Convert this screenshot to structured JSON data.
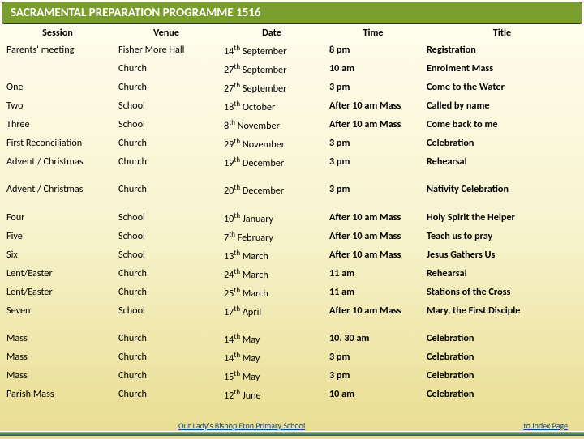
{
  "header": {
    "title": "SACRAMENTAL PREPARATION PROGRAMME 1516"
  },
  "columns": [
    "Session",
    "Venue",
    "Date",
    "Time",
    "Title"
  ],
  "groups": [
    [
      {
        "session": "Parents' meeting",
        "venue": "Fisher More Hall",
        "date_d": "14",
        "date_sup": "th",
        "date_m": " September",
        "time": "8 pm",
        "title": "Registration"
      },
      {
        "session": "",
        "venue": "Church",
        "date_d": "27",
        "date_sup": "th",
        "date_m": " September",
        "time": "10 am",
        "title": "Enrolment Mass"
      },
      {
        "session": "One",
        "venue": "Church",
        "date_d": "27",
        "date_sup": "th",
        "date_m": " September",
        "time": "3 pm",
        "title": "Come to the Water"
      },
      {
        "session": "Two",
        "venue": "School",
        "date_d": "18",
        "date_sup": "th",
        "date_m": " October",
        "time": "After 10 am Mass",
        "title": "Called by name"
      },
      {
        "session": "Three",
        "venue": "School",
        "date_d": "8",
        "date_sup": "th",
        "date_m": " November",
        "time": "After 10 am Mass",
        "title": "Come back to me"
      },
      {
        "session": "First Reconciliation",
        "venue": "Church",
        "date_d": "29",
        "date_sup": "th",
        "date_m": " November",
        "time": "3 pm",
        "title": "Celebration"
      },
      {
        "session": "Advent / Christmas",
        "venue": "Church",
        "date_d": "19",
        "date_sup": "th",
        "date_m": " December",
        "time": "3 pm",
        "title": "Rehearsal"
      }
    ],
    [
      {
        "session": "Advent / Christmas",
        "venue": "Church",
        "date_d": "20",
        "date_sup": "th",
        "date_m": " December",
        "time": "3 pm",
        "title": "Nativity Celebration"
      }
    ],
    [
      {
        "session": "Four",
        "venue": "School",
        "date_d": "10",
        "date_sup": "th",
        "date_m": " January",
        "time": "After 10 am Mass",
        "title": "Holy Spirit the Helper"
      },
      {
        "session": "Five",
        "venue": "School",
        "date_d": "7",
        "date_sup": "th",
        "date_m": " February",
        "time": "After 10 am Mass",
        "title": "Teach us to pray"
      },
      {
        "session": "Six",
        "venue": "School",
        "date_d": "13",
        "date_sup": "th",
        "date_m": " March",
        "time": "After 10 am Mass",
        "title": "Jesus Gathers Us"
      },
      {
        "session": "Lent/Easter",
        "venue": "Church",
        "date_d": "24",
        "date_sup": "th",
        "date_m": " March",
        "time": "11 am",
        "title": "Rehearsal"
      },
      {
        "session": "Lent/Easter",
        "venue": "Church",
        "date_d": "25",
        "date_sup": "th",
        "date_m": " March",
        "time": "11 am",
        "title": "Stations of the Cross"
      },
      {
        "session": "Seven",
        "venue": "School",
        "date_d": "17",
        "date_sup": "th",
        "date_m": " April",
        "time": "After 10 am Mass",
        "title": "Mary, the First Disciple"
      }
    ],
    [
      {
        "session": "Mass",
        "venue": "Church",
        "date_d": "14",
        "date_sup": "th",
        "date_m": " May",
        "time": "10. 30 am",
        "title": "Celebration"
      },
      {
        "session": "Mass",
        "venue": "Church",
        "date_d": "14",
        "date_sup": "th",
        "date_m": " May",
        "time": "3 pm",
        "title": "Celebration"
      },
      {
        "session": "Mass",
        "venue": "Church",
        "date_d": "15",
        "date_sup": "th",
        "date_m": " May",
        "time": "3 pm",
        "title": "Celebration"
      },
      {
        "session": "Parish Mass",
        "venue": "Church",
        "date_d": "12",
        "date_sup": "th",
        "date_m": " June",
        "time": "10 am",
        "title": "Celebration"
      }
    ]
  ],
  "footer": {
    "left": "Our Lady's Bishop Eton Primary School",
    "right": "to Index Page"
  },
  "colors": {
    "header_bg": "#7a9e2e",
    "text": "#000000",
    "link": "#154a8a"
  }
}
